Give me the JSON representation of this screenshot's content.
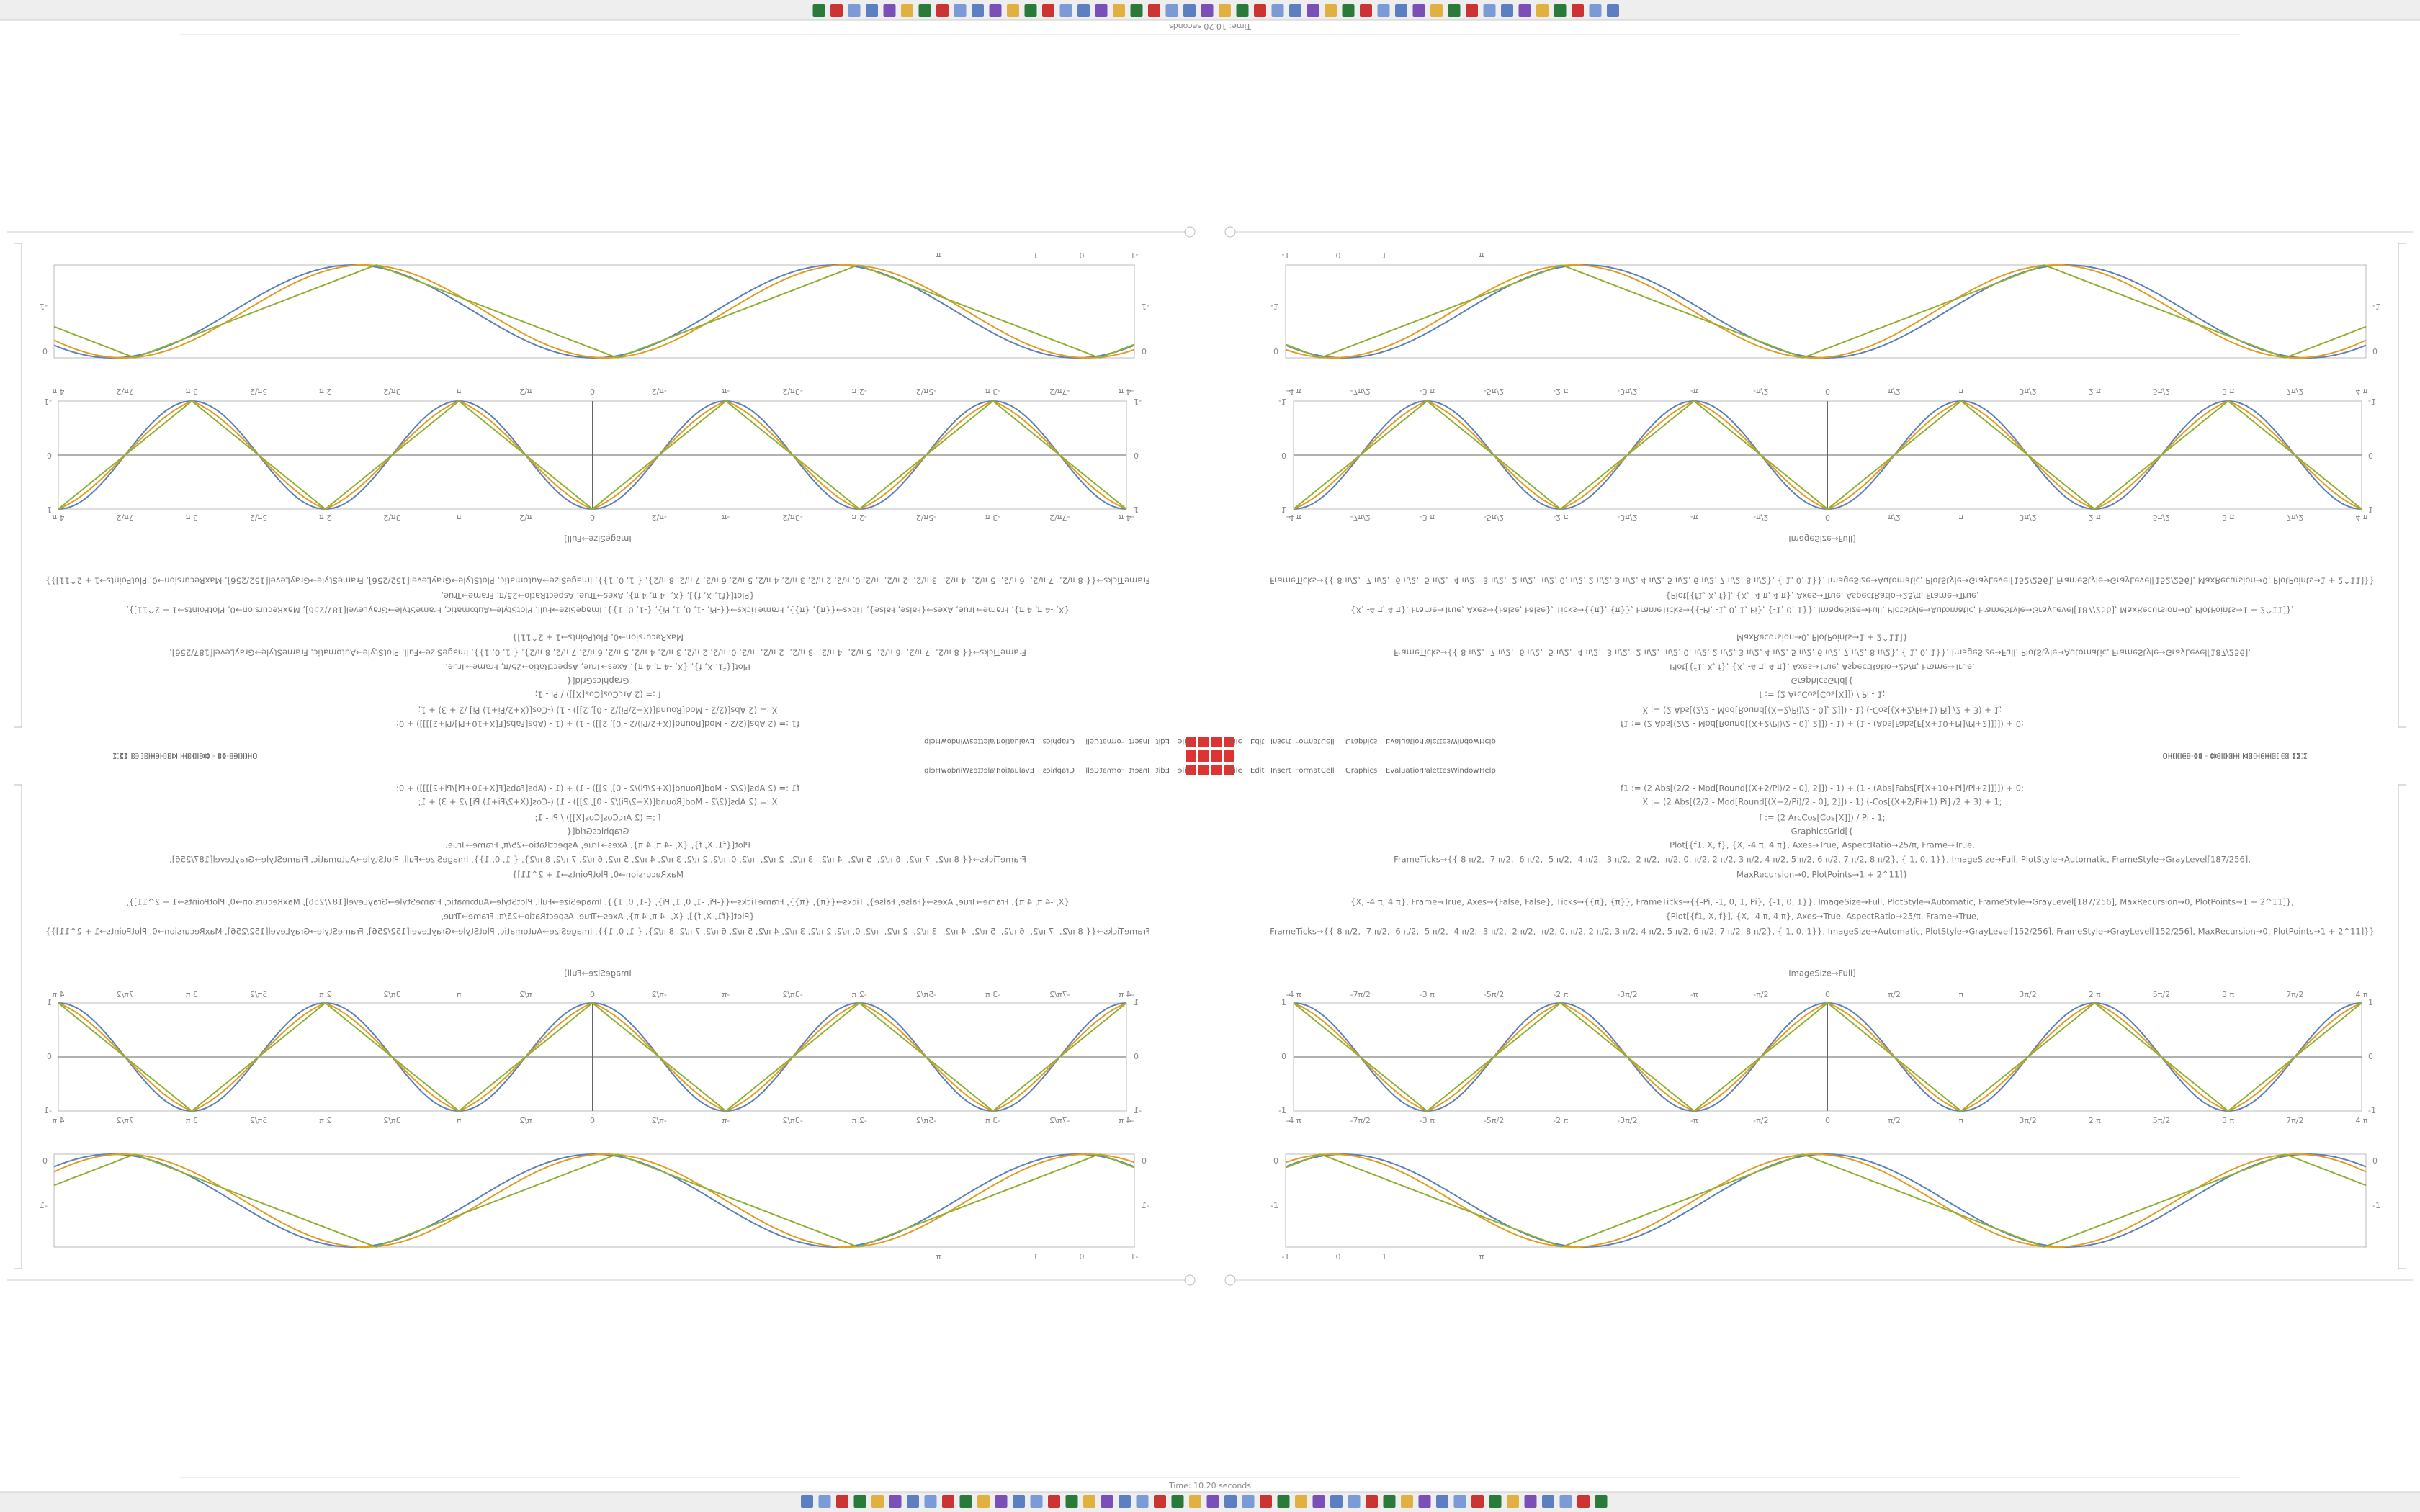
{
  "window": {
    "title": "Untitled-98 - Wolfram Mathematica 12.1",
    "status": "Time: 10.20 seconds",
    "menu": [
      "File",
      "Edit",
      "Insert",
      "Format",
      "Cell",
      "Graphics",
      "Evaluation",
      "Palettes",
      "Window",
      "Help"
    ]
  },
  "notebook": {
    "code_lines": [
      "f1 := (2 Abs[(2/2 - Mod[Round[(X+2/Pi)/2 - 0], 2]]) - 1) + (1 - (Abs[Fabs[F[X+10+Pi]/Pi+2]]]]) + 0;",
      "X := (2 Abs[(2/2 - Mod[Round[(X+2/Pi)/2 - 0], 2]]) - 1) (-Cos[(X+2/Pi+1) Pi] /2 + 3) + 1;",
      "f := (2 ArcCos[Cos[X]]) / Pi - 1;",
      "GraphicsGrid[{",
      "Plot[{f1, X, f}, {X, -4 π, 4 π}, Axes→True, AspectRatio→25/π, Frame→True,",
      "FrameTicks→{{-8 π/2, -7 π/2, -6 π/2, -5 π/2, -4 π/2, -3 π/2, -2 π/2, -π/2, 0, π/2, 2 π/2, 3 π/2, 4 π/2, 5 π/2, 6 π/2, 7 π/2, 8 π/2}, {-1, 0, 1}}, ImageSize→Full, PlotStyle→Automatic, FrameStyle→GrayLevel[187/256],",
      "MaxRecursion→0, PlotPoints→1 + 2^11]}",
      "{X, -4 π, 4 π}, Frame→True, Axes→{False, False}, Ticks→{{π}, {π}}, FrameTicks→{{-Pi, -1, 0, 1, Pi}, {-1, 0, 1}}, ImageSize→Full, PlotStyle→Automatic, FrameStyle→GrayLevel[187/256], MaxRecursion→0, PlotPoints→1 + 2^11]},",
      "{Plot[{f1, X, f}], {X, -4 π, 4 π}, Axes→True, AspectRatio→25/π, Frame→True,",
      "FrameTicks→{{-8 π/2, -7 π/2, -6 π/2, -5 π/2, -4 π/2, -3 π/2, -2 π/2, -π/2, 0, π/2, 2 π/2, 3 π/2, 4 π/2, 5 π/2, 6 π/2, 7 π/2, 8 π/2}, {-1, 0, 1}}, ImageSize→Automatic, PlotStyle→GrayLevel[152/256], FrameStyle→GrayLevel[152/256], MaxRecursion→0, PlotPoints→1 + 2^11]}}",
      "ImageSize→Full]"
    ],
    "plot1": {
      "x_ticks": [
        "-4 π",
        "-7π/2",
        "-3 π",
        "-5π/2",
        "-2 π",
        "-3π/2",
        "-π",
        "-π/2",
        "0",
        "π/2",
        "π",
        "3π/2",
        "2 π",
        "5π/2",
        "3 π",
        "7π/2",
        "4 π"
      ],
      "y_ticks": [
        "1",
        "0",
        "-1"
      ]
    },
    "plot2": {
      "x_ticks": [
        "-1",
        "0",
        "1",
        "π"
      ],
      "y_ticks": [
        "0",
        "-1"
      ]
    }
  }
}
